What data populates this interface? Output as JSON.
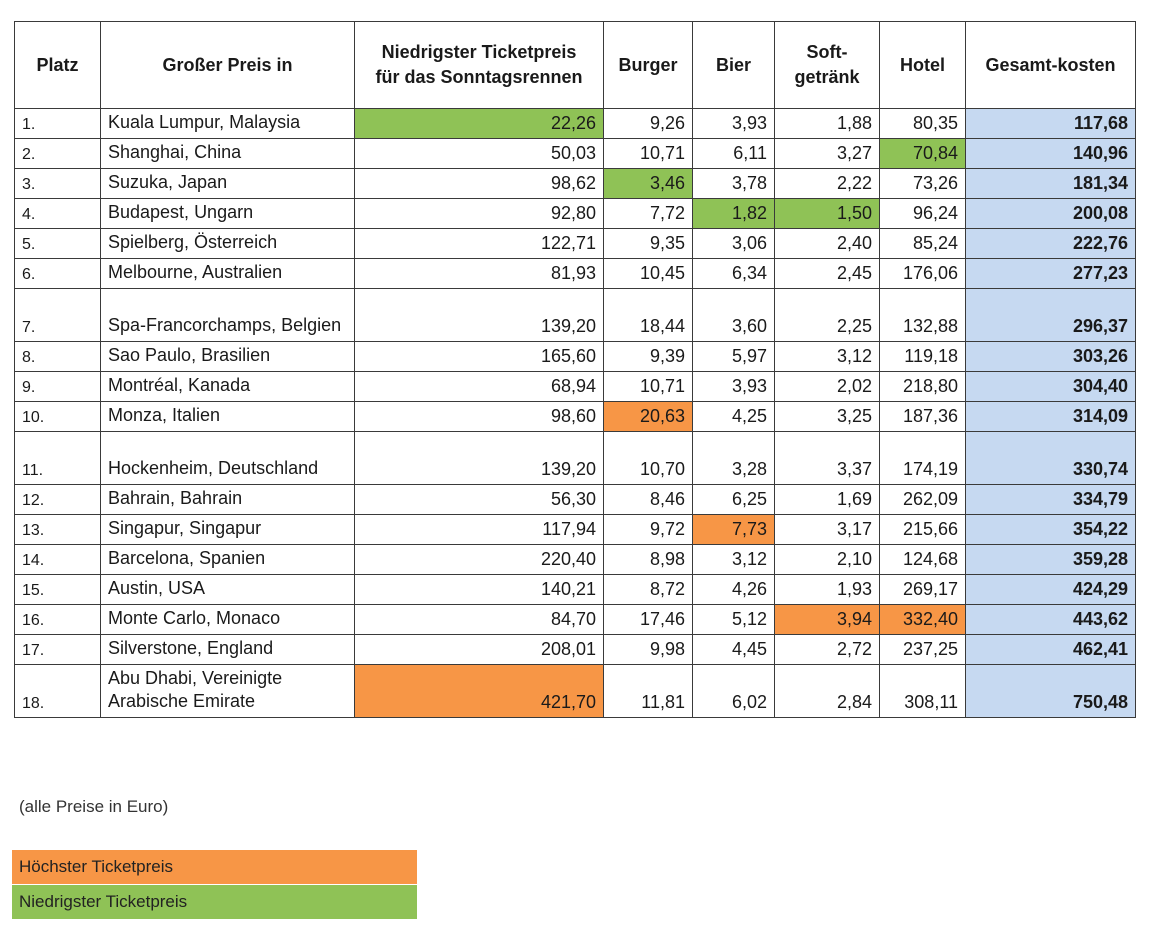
{
  "headers": [
    "Platz",
    "Großer Preis in",
    "Niedrigster Ticketpreis für das Sonntagsrennen",
    "Burger",
    "Bier",
    "Soft-getränk",
    "Hotel",
    "Gesamt-kosten"
  ],
  "rows": [
    {
      "rank": "1.",
      "place": "Kuala Lumpur, Malaysia",
      "ticket": "22,26",
      "burger": "9,26",
      "beer": "3,93",
      "soft": "1,88",
      "hotel": "80,35",
      "total": "117,68"
    },
    {
      "rank": "2.",
      "place": "Shanghai, China",
      "ticket": "50,03",
      "burger": "10,71",
      "beer": "6,11",
      "soft": "3,27",
      "hotel": "70,84",
      "total": "140,96"
    },
    {
      "rank": "3.",
      "place": "Suzuka, Japan",
      "ticket": "98,62",
      "burger": "3,46",
      "beer": "3,78",
      "soft": "2,22",
      "hotel": "73,26",
      "total": "181,34"
    },
    {
      "rank": "4.",
      "place": "Budapest, Ungarn",
      "ticket": "92,80",
      "burger": "7,72",
      "beer": "1,82",
      "soft": "1,50",
      "hotel": "96,24",
      "total": "200,08"
    },
    {
      "rank": "5.",
      "place": "Spielberg, Österreich",
      "ticket": "122,71",
      "burger": "9,35",
      "beer": "3,06",
      "soft": "2,40",
      "hotel": "85,24",
      "total": "222,76"
    },
    {
      "rank": "6.",
      "place": "Melbourne, Australien",
      "ticket": "81,93",
      "burger": "10,45",
      "beer": "6,34",
      "soft": "2,45",
      "hotel": "176,06",
      "total": "277,23"
    },
    {
      "rank": "7.",
      "place": "Spa-Francorchamps, Belgien",
      "ticket": "139,20",
      "burger": "18,44",
      "beer": "3,60",
      "soft": "2,25",
      "hotel": "132,88",
      "total": "296,37"
    },
    {
      "rank": "8.",
      "place": "Sao Paulo, Brasilien",
      "ticket": "165,60",
      "burger": "9,39",
      "beer": "5,97",
      "soft": "3,12",
      "hotel": "119,18",
      "total": "303,26"
    },
    {
      "rank": "9.",
      "place": "Montréal, Kanada",
      "ticket": "68,94",
      "burger": "10,71",
      "beer": "3,93",
      "soft": "2,02",
      "hotel": "218,80",
      "total": "304,40"
    },
    {
      "rank": "10.",
      "place": "Monza, Italien",
      "ticket": "98,60",
      "burger": "20,63",
      "beer": "4,25",
      "soft": "3,25",
      "hotel": "187,36",
      "total": "314,09"
    },
    {
      "rank": "11.",
      "place": "Hockenheim, Deutschland",
      "ticket": "139,20",
      "burger": "10,70",
      "beer": "3,28",
      "soft": "3,37",
      "hotel": "174,19",
      "total": "330,74"
    },
    {
      "rank": "12.",
      "place": "Bahrain, Bahrain",
      "ticket": "56,30",
      "burger": "8,46",
      "beer": "6,25",
      "soft": "1,69",
      "hotel": "262,09",
      "total": "334,79"
    },
    {
      "rank": "13.",
      "place": "Singapur, Singapur",
      "ticket": "117,94",
      "burger": "9,72",
      "beer": "7,73",
      "soft": "3,17",
      "hotel": "215,66",
      "total": "354,22"
    },
    {
      "rank": "14.",
      "place": "Barcelona, Spanien",
      "ticket": "220,40",
      "burger": "8,98",
      "beer": "3,12",
      "soft": "2,10",
      "hotel": "124,68",
      "total": "359,28"
    },
    {
      "rank": "15.",
      "place": "Austin, USA",
      "ticket": "140,21",
      "burger": "8,72",
      "beer": "4,26",
      "soft": "1,93",
      "hotel": "269,17",
      "total": "424,29"
    },
    {
      "rank": "16.",
      "place": "Monte Carlo, Monaco",
      "ticket": "84,70",
      "burger": "17,46",
      "beer": "5,12",
      "soft": "3,94",
      "hotel": "332,40",
      "total": "443,62"
    },
    {
      "rank": "17.",
      "place": "Silverstone, England",
      "ticket": "208,01",
      "burger": "9,98",
      "beer": "4,45",
      "soft": "2,72",
      "hotel": "237,25",
      "total": "462,41"
    },
    {
      "rank": "18.",
      "place": "Abu Dhabi, Vereinigte Arabische Emirate",
      "ticket": "421,70",
      "burger": "11,81",
      "beer": "6,02",
      "soft": "2,84",
      "hotel": "308,11",
      "total": "750,48"
    }
  ],
  "highlights": {
    "highest": [
      [
        9,
        "burger"
      ],
      [
        12,
        "beer"
      ],
      [
        15,
        "soft"
      ],
      [
        15,
        "hotel"
      ],
      [
        17,
        "ticket"
      ]
    ],
    "lowest": [
      [
        0,
        "ticket"
      ],
      [
        1,
        "hotel"
      ],
      [
        2,
        "burger"
      ],
      [
        3,
        "beer"
      ],
      [
        3,
        "soft"
      ]
    ]
  },
  "note": "(alle Preise in Euro)",
  "legend": {
    "highest": {
      "label": "Höchster Ticketpreis",
      "color": "#f79646"
    },
    "lowest": {
      "label": "Niedrigster Ticketpreis",
      "color": "#8fc256"
    }
  }
}
